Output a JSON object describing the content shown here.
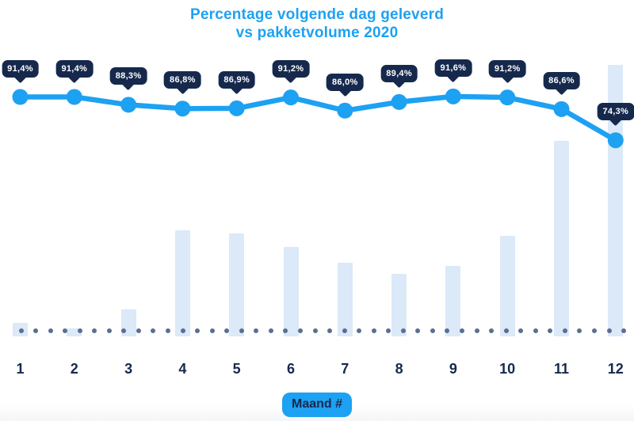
{
  "title": {
    "line1": "Percentage volgende dag geleverd",
    "line2": "vs pakketvolume 2020"
  },
  "colors": {
    "accent_blue": "#1da1f2",
    "navy": "#16294d",
    "bar_fill": "#dbe9f8",
    "baseline_dot": "#5b6e92",
    "tooltip_text": "#ffffff",
    "background": "#ffffff"
  },
  "chart_data": {
    "type": "combo",
    "title": "Percentage volgende dag geleverd vs pakketvolume 2020",
    "x": [
      "1",
      "2",
      "3",
      "4",
      "5",
      "6",
      "7",
      "8",
      "9",
      "10",
      "11",
      "12"
    ],
    "xlabel": "Maand #",
    "grid": false,
    "legend": "none",
    "series": [
      {
        "name": "Percentage volgende dag geleverd",
        "type": "line",
        "unit": "%",
        "values": [
          91.4,
          91.4,
          88.3,
          86.8,
          86.9,
          91.2,
          86.0,
          89.4,
          91.6,
          91.2,
          86.6,
          74.3
        ],
        "labels": [
          "91,4%",
          "91,4%",
          "88,3%",
          "86,8%",
          "86,9%",
          "91,2%",
          "86,0%",
          "89,4%",
          "91,6%",
          "91,2%",
          "86,6%",
          "74,3%"
        ],
        "ylim": [
          70,
          95
        ]
      },
      {
        "name": "Pakketvolume 2020",
        "type": "bar",
        "unit": "relative volume, estimated from bar heights (max month = 100)",
        "values": [
          5,
          3,
          10,
          39,
          38,
          33,
          27,
          23,
          26,
          37,
          72,
          100
        ],
        "ylim": [
          0,
          100
        ]
      }
    ]
  }
}
